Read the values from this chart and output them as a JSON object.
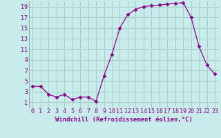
{
  "x": [
    0,
    1,
    2,
    3,
    4,
    5,
    6,
    7,
    8,
    9,
    10,
    11,
    12,
    13,
    14,
    15,
    16,
    17,
    18,
    19,
    20,
    21,
    22,
    23
  ],
  "y": [
    4,
    4,
    2.5,
    2,
    2.5,
    1.5,
    2,
    2,
    1.2,
    6,
    10,
    15,
    17.5,
    18.5,
    19,
    19.2,
    19.3,
    19.5,
    19.6,
    19.8,
    17,
    11.5,
    8,
    6.3
  ],
  "line_color": "#8B008B",
  "marker": "D",
  "marker_size": 2.5,
  "bg_color": "#c8ecec",
  "grid_color": "#aacccc",
  "xlabel": "Windchill (Refroidissement éolien,°C)",
  "xlabel_color": "#8B008B",
  "tick_color": "#8B008B",
  "xlim": [
    -0.5,
    23.5
  ],
  "ylim": [
    0,
    20
  ],
  "yticks": [
    1,
    3,
    5,
    7,
    9,
    11,
    13,
    15,
    17,
    19
  ],
  "xticks": [
    0,
    1,
    2,
    3,
    4,
    5,
    6,
    7,
    8,
    9,
    10,
    11,
    12,
    13,
    14,
    15,
    16,
    17,
    18,
    19,
    20,
    21,
    22,
    23
  ],
  "label_fontsize": 6.5,
  "tick_fontsize": 6.0
}
